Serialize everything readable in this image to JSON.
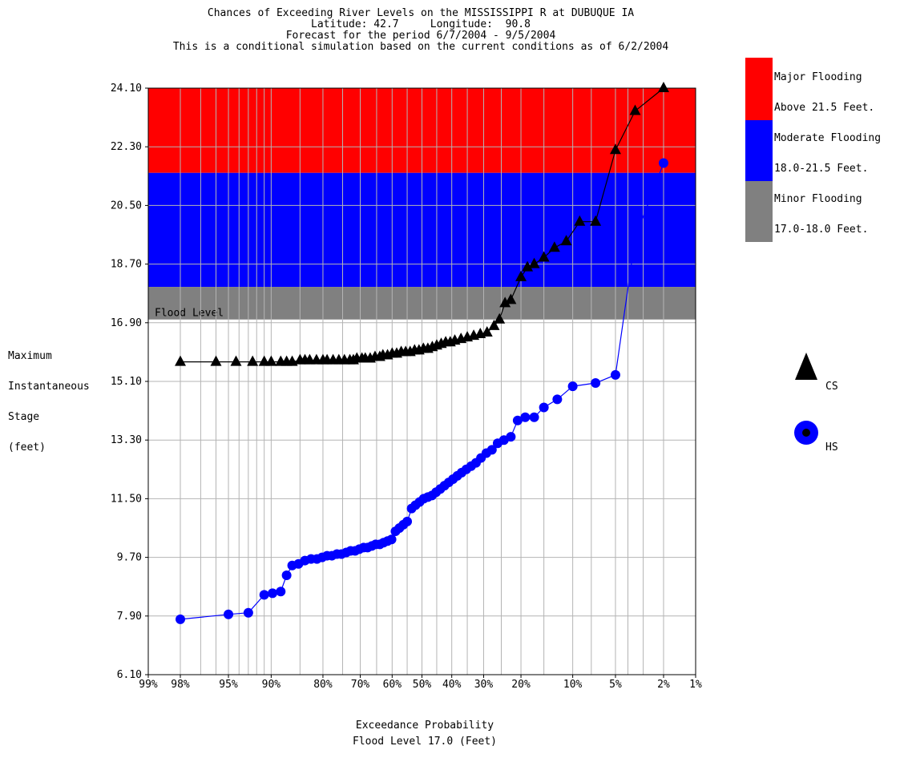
{
  "chart_data": {
    "type": "line",
    "title": [
      "Chances of Exceeding River Levels on the MISSISSIPPI R at DUBUQUE IA",
      "Latitude: 42.7     Longitude:  90.8",
      "Forecast for the period 6/7/2004 - 9/5/2004",
      "This is a conditional simulation based on the current conditions as of 6/2/2004"
    ],
    "ylabel": [
      "Maximum",
      "Instantaneous",
      "Stage",
      "(feet)"
    ],
    "xlabel": [
      "Exceedance Probability",
      "Flood Level 17.0 (Feet)"
    ],
    "ylim": [
      6.1,
      24.1
    ],
    "y_ticks": [
      "6.10",
      "7.90",
      "9.70",
      "11.50",
      "13.30",
      "15.10",
      "16.90",
      "18.70",
      "20.50",
      "22.30",
      "24.10"
    ],
    "x_ticks": [
      {
        "p": 99,
        "label": "99%"
      },
      {
        "p": 98,
        "label": "98%"
      },
      {
        "p": 95,
        "label": "95%"
      },
      {
        "p": 90,
        "label": "90%"
      },
      {
        "p": 80,
        "label": "80%"
      },
      {
        "p": 70,
        "label": "70%"
      },
      {
        "p": 60,
        "label": "60%"
      },
      {
        "p": 50,
        "label": "50%"
      },
      {
        "p": 40,
        "label": "40%"
      },
      {
        "p": 30,
        "label": "30%"
      },
      {
        "p": 20,
        "label": "20%"
      },
      {
        "p": 10,
        "label": "10%"
      },
      {
        "p": 5,
        "label": "5%"
      },
      {
        "p": 2,
        "label": "2%"
      },
      {
        "p": 1,
        "label": "1%"
      }
    ],
    "x_scale": "normal-probability",
    "x_grid_lines": [
      99,
      98,
      97,
      96,
      95,
      94,
      93,
      92,
      91,
      90,
      85,
      80,
      75,
      70,
      65,
      60,
      55,
      50,
      45,
      40,
      35,
      30,
      25,
      20,
      15,
      10,
      7.5,
      5,
      4,
      3,
      2,
      1
    ],
    "bands": [
      {
        "name": "major",
        "from": 21.5,
        "to": 24.1,
        "color": "#ff0000"
      },
      {
        "name": "moderate",
        "from": 18.0,
        "to": 21.5,
        "color": "#0000ff"
      },
      {
        "name": "minor",
        "from": 17.0,
        "to": 18.0,
        "color": "#808080"
      }
    ],
    "flood_level_label": "Flood Level",
    "series": [
      {
        "name": "CS",
        "color": "#000000",
        "marker": "triangle",
        "x": [
          98,
          96,
          94.3,
          92.5,
          91,
          90,
          88.5,
          87.5,
          86.5,
          85,
          84,
          83,
          81.5,
          80,
          79,
          77.5,
          76,
          74.5,
          73,
          72,
          71,
          69.5,
          68.5,
          67,
          65.5,
          64,
          63,
          61.5,
          60,
          58.5,
          57,
          55.5,
          54,
          52.5,
          51,
          49.5,
          48,
          46.5,
          45,
          43.5,
          42,
          40.5,
          39,
          37,
          35,
          33,
          31,
          29,
          27,
          25.5,
          24,
          22.5,
          20,
          18.5,
          17,
          15,
          13,
          11,
          9,
          7,
          5,
          3.5,
          2
        ],
        "y": [
          15.7,
          15.7,
          15.7,
          15.7,
          15.7,
          15.7,
          15.7,
          15.7,
          15.7,
          15.75,
          15.75,
          15.75,
          15.75,
          15.75,
          15.75,
          15.75,
          15.75,
          15.75,
          15.75,
          15.75,
          15.8,
          15.8,
          15.8,
          15.8,
          15.85,
          15.85,
          15.9,
          15.9,
          15.95,
          15.95,
          16.0,
          16.0,
          16.0,
          16.05,
          16.05,
          16.1,
          16.1,
          16.15,
          16.2,
          16.25,
          16.3,
          16.3,
          16.35,
          16.4,
          16.45,
          16.5,
          16.55,
          16.6,
          16.8,
          17.0,
          17.5,
          17.6,
          18.3,
          18.6,
          18.7,
          18.9,
          19.2,
          19.4,
          20.0,
          20.0,
          22.2,
          23.4,
          24.1
        ]
      },
      {
        "name": "HS",
        "color": "#0000ff",
        "marker": "circle",
        "x": [
          98,
          95,
          93,
          91,
          89.8,
          88.5,
          87.5,
          86.5,
          85.3,
          84,
          82.7,
          81.4,
          80.2,
          79,
          77.8,
          76.5,
          75.3,
          74,
          72.8,
          71.5,
          70.3,
          69,
          67.8,
          66.5,
          65.3,
          64,
          62.8,
          61.5,
          60.2,
          58.9,
          57.6,
          56.3,
          55,
          53.5,
          52.2,
          50.8,
          49.4,
          48,
          46.6,
          45.2,
          43.8,
          42.4,
          41,
          39.6,
          38.2,
          36.8,
          35.3,
          33.8,
          32.3,
          30.8,
          29.2,
          27.6,
          26,
          24.3,
          22.5,
          20.8,
          19,
          17,
          15,
          12.5,
          10,
          7,
          5,
          3.5,
          2
        ],
        "y": [
          7.8,
          7.95,
          8.0,
          8.55,
          8.6,
          8.65,
          9.15,
          9.45,
          9.5,
          9.6,
          9.65,
          9.65,
          9.7,
          9.75,
          9.75,
          9.8,
          9.8,
          9.85,
          9.9,
          9.9,
          9.95,
          10.0,
          10.0,
          10.05,
          10.1,
          10.1,
          10.15,
          10.2,
          10.25,
          10.5,
          10.6,
          10.7,
          10.8,
          11.2,
          11.3,
          11.4,
          11.5,
          11.55,
          11.6,
          11.7,
          11.8,
          11.9,
          12.0,
          12.1,
          12.2,
          12.3,
          12.4,
          12.5,
          12.6,
          12.75,
          12.9,
          13.0,
          13.2,
          13.3,
          13.4,
          13.9,
          14.0,
          14.0,
          14.3,
          14.55,
          14.95,
          15.05,
          15.3,
          19.5,
          21.8
        ]
      }
    ],
    "legend": [
      {
        "label": "Major Flooding",
        "color": "#ff0000"
      },
      {
        "label": "Above 21.5 Feet.",
        "color": "#ff0000"
      },
      {
        "label": "Moderate Flooding",
        "color": "#0000ff"
      },
      {
        "label": "18.0-21.5 Feet.",
        "color": "#0000ff"
      },
      {
        "label": "Minor Flooding",
        "color": "#808080"
      },
      {
        "label": "17.0-18.0 Feet.",
        "color": "#808080"
      }
    ],
    "series_legend": [
      {
        "label": "CS",
        "marker": "triangle",
        "color": "#000000"
      },
      {
        "label": "HS",
        "marker": "circle",
        "color": "#0000ff"
      }
    ]
  }
}
